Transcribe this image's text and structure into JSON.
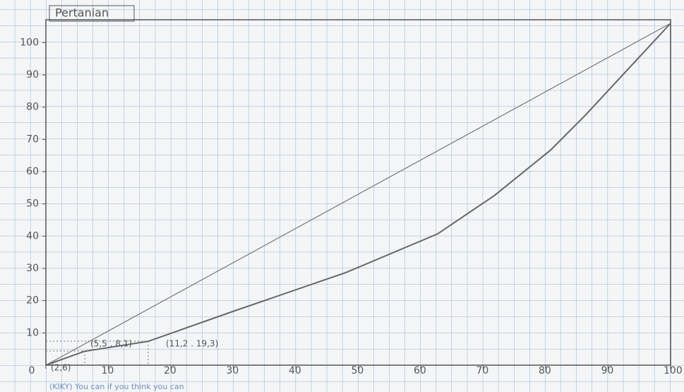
{
  "chart_data": {
    "type": "line",
    "title": "Pertanian",
    "x": [
      0,
      6.2,
      16.4,
      30,
      48,
      62.7,
      71.8,
      80.8,
      86.4,
      100
    ],
    "series": [
      {
        "color": "#777777",
        "x": [
          0,
          100
        ],
        "values": [
          0,
          106
        ]
      },
      {
        "color": "#666666",
        "values": [
          0,
          4.3,
          7.4,
          16.7,
          28.7,
          40.7,
          52.6,
          66.7,
          77.6,
          106
        ]
      }
    ],
    "xlim": [
      0,
      100
    ],
    "xticks": [
      0,
      10,
      20,
      30,
      40,
      50,
      60,
      70,
      80,
      90,
      100
    ],
    "ylim": [
      0,
      106
    ],
    "yticks": [
      10,
      20,
      30,
      40,
      50,
      60,
      70,
      80,
      90,
      100
    ],
    "annotations": [
      "(2,6)",
      "(5,5 . 8,1)",
      "(11,2 . 19,3)"
    ],
    "footer": "(KIKY) You can if you think you can"
  }
}
